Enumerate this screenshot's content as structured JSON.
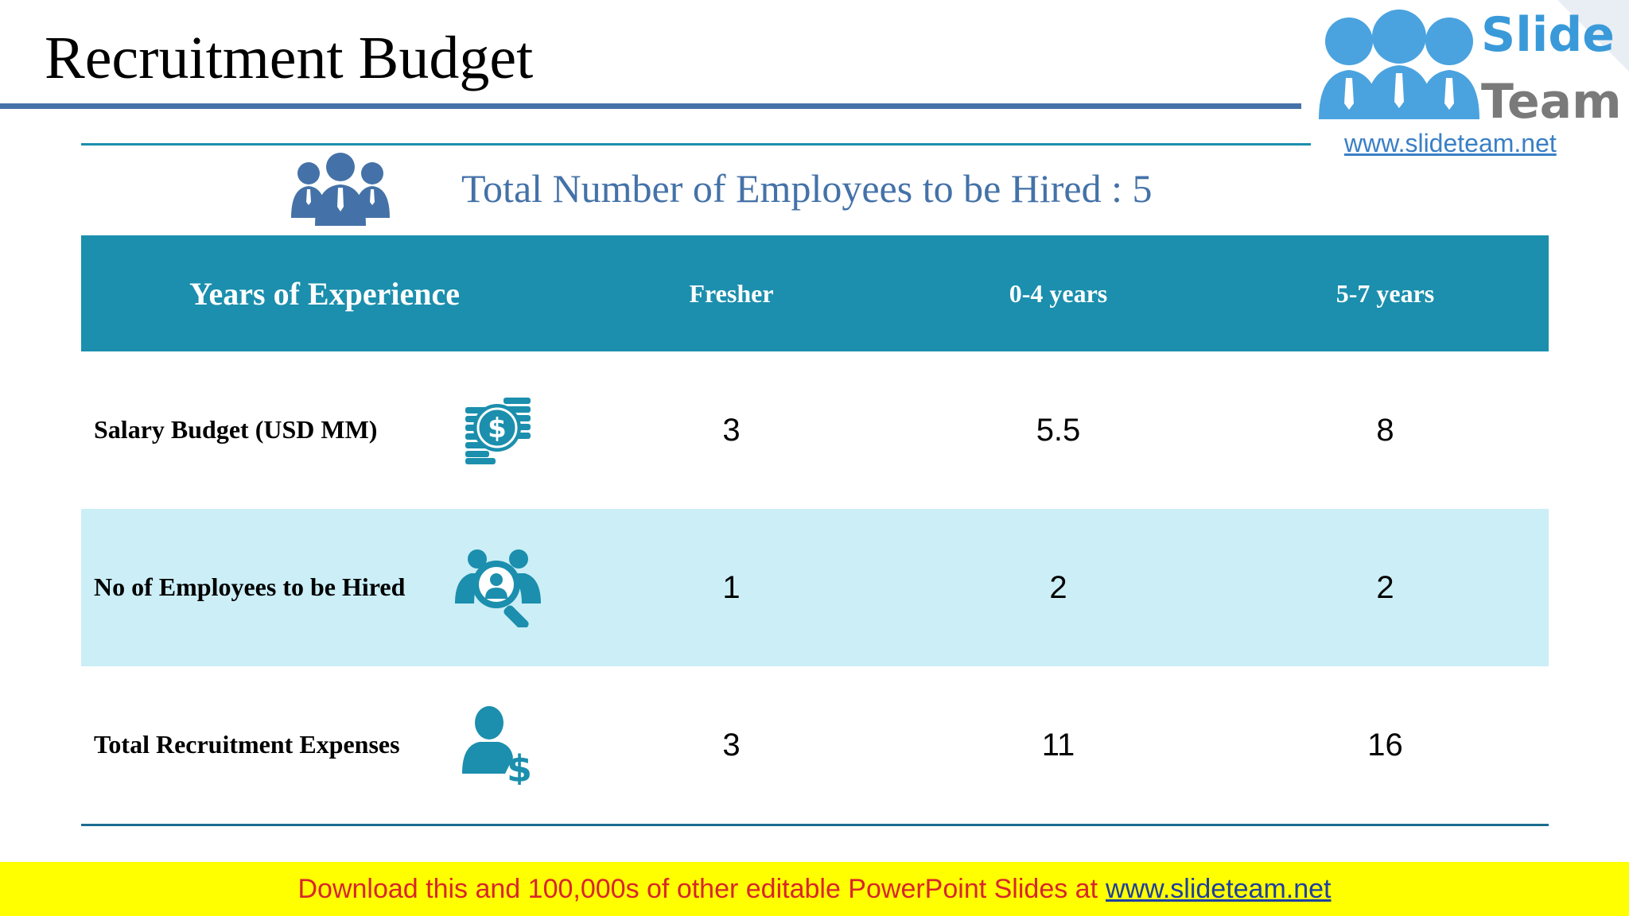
{
  "title": "Recruitment Budget",
  "logo": {
    "word1": "Slide",
    "word2": "Team",
    "url": "www.slideteam.net"
  },
  "headline": "Total Number of Employees to be Hired : 5",
  "table": {
    "header": [
      "Years of Experience",
      "Fresher",
      "0-4 years",
      "5-7 years"
    ],
    "rows": [
      {
        "label": "Salary Budget (USD MM)",
        "icon": "money-coins-icon",
        "values": [
          "3",
          "5.5",
          "8"
        ]
      },
      {
        "label": "No of Employees to be Hired",
        "icon": "people-search-icon",
        "values": [
          "1",
          "2",
          "2"
        ]
      },
      {
        "label": "Total Recruitment Expenses",
        "icon": "person-dollar-icon",
        "values": [
          "3",
          "11",
          "16"
        ]
      }
    ]
  },
  "banner": {
    "text": "Download this and 100,000s of other editable PowerPoint Slides at",
    "link": "www.slideteam.net"
  },
  "colors": {
    "accent": "#1b8fad",
    "title_rule": "#4472a8",
    "shaded_row": "#cbeef7",
    "banner_bg": "#ffff00",
    "banner_text": "#d8262c"
  }
}
